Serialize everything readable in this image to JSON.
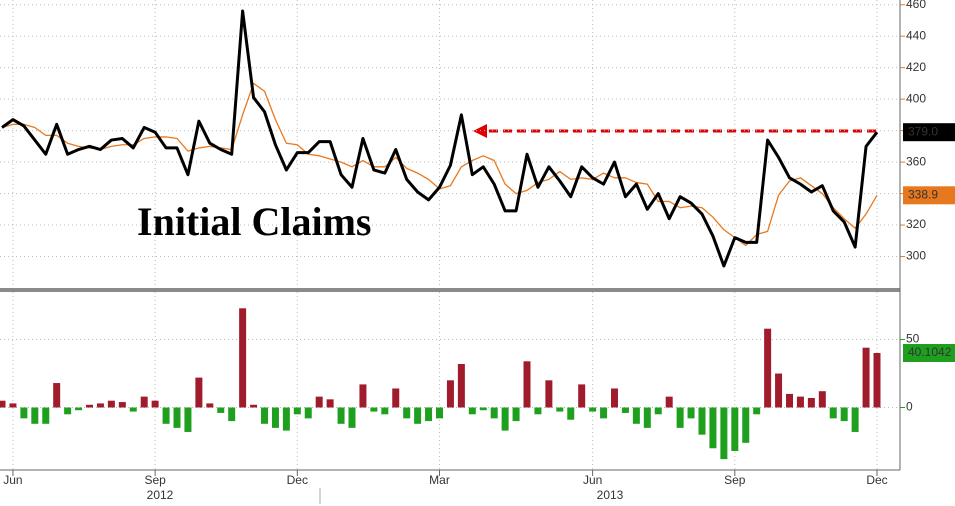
{
  "chart_data": [
    {
      "type": "line",
      "annotation": "Initial Claims",
      "categories": [
        null,
        "Jun",
        null,
        null,
        null,
        null,
        null,
        null,
        null,
        null,
        null,
        null,
        null,
        null,
        "Sep",
        null,
        null,
        null,
        null,
        null,
        null,
        null,
        null,
        null,
        null,
        null,
        null,
        "Dec",
        null,
        null,
        null,
        null,
        null,
        null,
        null,
        null,
        null,
        null,
        null,
        null,
        "Mar",
        null,
        null,
        null,
        null,
        null,
        null,
        null,
        null,
        null,
        null,
        null,
        null,
        null,
        "Jun",
        null,
        null,
        null,
        null,
        null,
        null,
        null,
        null,
        null,
        null,
        null,
        null,
        "Sep",
        null,
        null,
        null,
        null,
        null,
        null,
        null,
        null,
        null,
        null,
        null,
        null,
        "Dec"
      ],
      "year_labels": [
        "2012",
        "2013"
      ],
      "series": [
        {
          "color": "#000000",
          "values": [
            382,
            387,
            383,
            374,
            365,
            384,
            365,
            368,
            370,
            368,
            374,
            375,
            369,
            382,
            379,
            369,
            369,
            352,
            386,
            372,
            368,
            365,
            456,
            401,
            392,
            371,
            355,
            366,
            366,
            373,
            373,
            352,
            344,
            375,
            355,
            353,
            368,
            349,
            341,
            336,
            344,
            358,
            390,
            352,
            357,
            346,
            329,
            329,
            365,
            344,
            357,
            348,
            338,
            357,
            350,
            346,
            360,
            338,
            346,
            330,
            340,
            324,
            338,
            334,
            327,
            313,
            294,
            312,
            309,
            309,
            374,
            363,
            350,
            346,
            341,
            345,
            329,
            322,
            306,
            370,
            379
          ],
          "value_labels": [
            null,
            null,
            null,
            null,
            null,
            null,
            null,
            null,
            null,
            null,
            null,
            null,
            null,
            null,
            null,
            null,
            null,
            null,
            null,
            null,
            null,
            null,
            null,
            null,
            null,
            null,
            null,
            null,
            null,
            null,
            null,
            null,
            null,
            null,
            null,
            null,
            null,
            null,
            null,
            null,
            null,
            null,
            null,
            null,
            null,
            null,
            null,
            null,
            null,
            null,
            null,
            null,
            null,
            null,
            null,
            null,
            null,
            null,
            null,
            null,
            null,
            null,
            null,
            null,
            null,
            null,
            null,
            null,
            null,
            null,
            null,
            null,
            null,
            null,
            null,
            null,
            null,
            null,
            null,
            null,
            "379.0"
          ]
        },
        {
          "color": "#e8781e",
          "values": [
            382,
            384,
            384,
            382,
            377,
            377,
            372,
            370,
            369,
            368,
            370,
            371,
            371,
            375,
            376,
            376,
            375,
            367,
            369,
            370,
            369,
            368,
            390,
            410,
            405,
            387,
            372,
            371,
            365,
            364,
            362,
            360,
            357,
            361,
            357,
            357,
            363,
            356,
            353,
            349,
            343,
            345,
            357,
            361,
            364,
            361,
            346,
            340,
            342,
            347,
            349,
            354,
            349,
            350,
            349,
            353,
            350,
            350,
            347,
            346,
            335,
            335,
            331,
            332,
            331,
            325,
            317,
            312,
            307,
            314,
            316,
            339,
            348,
            350,
            345,
            340,
            331,
            324,
            318,
            327,
            338.9
          ]
        }
      ],
      "ylim": [
        280,
        463
      ],
      "yticks": [
        300,
        320,
        340,
        360,
        380,
        400,
        420,
        440,
        460
      ],
      "grid": true
    },
    {
      "type": "bar",
      "positive_color": "#a01c2c",
      "negative_color": "#1ea01e",
      "values": [
        5,
        3,
        -8,
        -12,
        -12,
        18,
        -5,
        -2,
        2,
        3,
        5,
        4,
        -3,
        8,
        5,
        -12,
        -15,
        -18,
        22,
        3,
        -4,
        -10,
        73,
        2,
        -12,
        -15,
        -17,
        -5,
        -8,
        8,
        6,
        -12,
        -15,
        17,
        -3,
        -5,
        14,
        -8,
        -12,
        -10,
        -8,
        20,
        32,
        -5,
        -2,
        -8,
        -17,
        -10,
        34,
        -5,
        20,
        -3,
        -9,
        17,
        -3,
        -8,
        14,
        -4,
        -12,
        -15,
        -5,
        8,
        -15,
        -8,
        -20,
        -30,
        -38,
        -32,
        -26,
        -5,
        58,
        25,
        10,
        8,
        7,
        12,
        -8,
        -10,
        -18,
        44,
        40.1042
      ],
      "ylim": [
        -46,
        85
      ],
      "yticks": [
        0,
        50
      ],
      "grid": true
    }
  ]
}
